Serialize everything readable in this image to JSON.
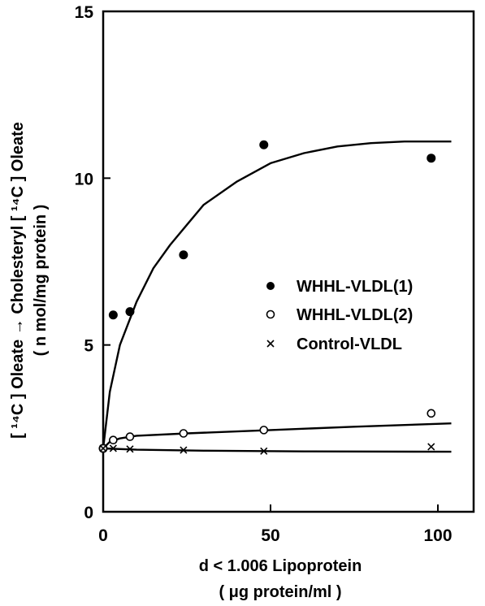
{
  "chart_data": {
    "type": "scatter",
    "xlabel": "d < 1.006 Lipoprotein",
    "xlabel_sub": "( μg protein/ml )",
    "ylabel": "[ ¹⁴C ] Oleate → Cholesteryl [ ¹⁴C ] Oleate",
    "ylabel_sub": "( n mol/mg protein )",
    "xlim": [
      0,
      110
    ],
    "ylim": [
      0,
      15
    ],
    "x_ticks": [
      0,
      50,
      100
    ],
    "x_tick_labels": [
      "0",
      "50",
      "100"
    ],
    "y_ticks": [
      0,
      5,
      10,
      15
    ],
    "y_tick_labels": [
      "0",
      "5",
      "10",
      "15"
    ],
    "grid": false,
    "legend_position": "center-right",
    "series": [
      {
        "name": "WHHL-VLDL(1)",
        "marker": "filled-circle",
        "points": [
          [
            0,
            1.9
          ],
          [
            3,
            5.9
          ],
          [
            8,
            6.0
          ],
          [
            24,
            7.7
          ],
          [
            48,
            11.0
          ],
          [
            98,
            10.6
          ]
        ],
        "fit_curve": [
          [
            0,
            1.9
          ],
          [
            2,
            3.6
          ],
          [
            5,
            5.0
          ],
          [
            10,
            6.3
          ],
          [
            15,
            7.3
          ],
          [
            20,
            8.0
          ],
          [
            25,
            8.6
          ],
          [
            30,
            9.2
          ],
          [
            40,
            9.9
          ],
          [
            50,
            10.45
          ],
          [
            60,
            10.75
          ],
          [
            70,
            10.95
          ],
          [
            80,
            11.05
          ],
          [
            90,
            11.1
          ],
          [
            100,
            11.1
          ],
          [
            104,
            11.1
          ]
        ]
      },
      {
        "name": "WHHL-VLDL(2)",
        "marker": "open-circle",
        "points": [
          [
            0,
            1.9
          ],
          [
            3,
            2.15
          ],
          [
            8,
            2.25
          ],
          [
            24,
            2.35
          ],
          [
            48,
            2.45
          ],
          [
            98,
            2.95
          ]
        ],
        "fit_curve": [
          [
            0,
            1.9
          ],
          [
            2,
            2.1
          ],
          [
            5,
            2.2
          ],
          [
            10,
            2.28
          ],
          [
            25,
            2.35
          ],
          [
            50,
            2.45
          ],
          [
            75,
            2.55
          ],
          [
            104,
            2.65
          ]
        ]
      },
      {
        "name": "Control-VLDL",
        "marker": "x",
        "points": [
          [
            0,
            1.9
          ],
          [
            3,
            1.9
          ],
          [
            8,
            1.88
          ],
          [
            24,
            1.85
          ],
          [
            48,
            1.82
          ],
          [
            98,
            1.95
          ]
        ],
        "fit_curve": [
          [
            0,
            1.9
          ],
          [
            10,
            1.86
          ],
          [
            30,
            1.83
          ],
          [
            60,
            1.81
          ],
          [
            104,
            1.8
          ]
        ]
      }
    ]
  }
}
